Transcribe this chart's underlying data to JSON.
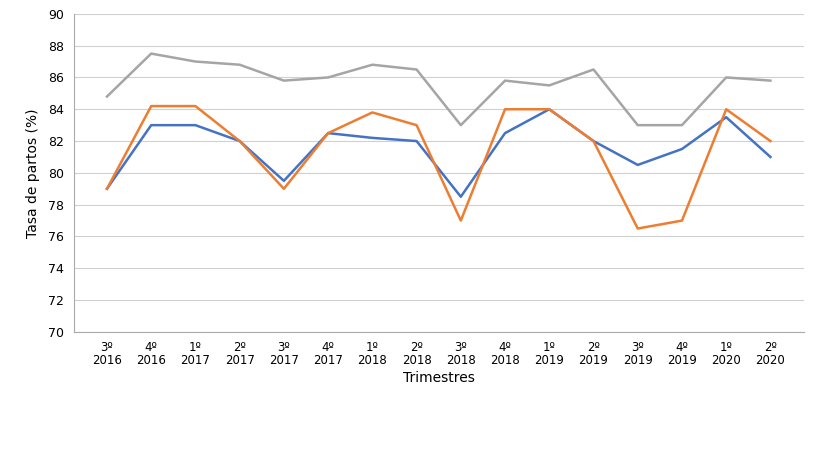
{
  "x_labels_top": [
    "3º",
    "4º",
    "1º",
    "2º",
    "3º",
    "4º",
    "1º",
    "2º",
    "3º",
    "4º",
    "1º",
    "2º",
    "3º",
    "4º",
    "1º",
    "2º"
  ],
  "x_labels_bot": [
    "2016",
    "2016",
    "2017",
    "2017",
    "2017",
    "2017",
    "2018",
    "2018",
    "2018",
    "2018",
    "2019",
    "2019",
    "2019",
    "2019",
    "2020",
    "2020"
  ],
  "ciclo1": [
    79.0,
    83.0,
    83.0,
    82.0,
    79.5,
    82.5,
    82.2,
    82.0,
    78.5,
    82.5,
    84.0,
    82.0,
    80.5,
    81.5,
    83.5,
    81.0
  ],
  "ciclo2": [
    79.0,
    84.2,
    84.2,
    82.0,
    79.0,
    82.5,
    83.8,
    83.0,
    77.0,
    84.0,
    84.0,
    82.0,
    76.5,
    77.0,
    84.0,
    82.0
  ],
  "ciclos3a6": [
    84.8,
    87.5,
    87.0,
    86.8,
    85.8,
    86.0,
    86.8,
    86.5,
    83.0,
    85.8,
    85.5,
    86.5,
    83.0,
    83.0,
    86.0,
    85.8
  ],
  "color_ciclo1": "#4472C4",
  "color_ciclo2": "#ED7D31",
  "color_ciclos3a6": "#A5A5A5",
  "ylabel": "Tasa de partos (%)",
  "xlabel": "Trimestres",
  "ylim": [
    70,
    90
  ],
  "yticks": [
    70,
    72,
    74,
    76,
    78,
    80,
    82,
    84,
    86,
    88,
    90
  ],
  "line_width": 1.8
}
